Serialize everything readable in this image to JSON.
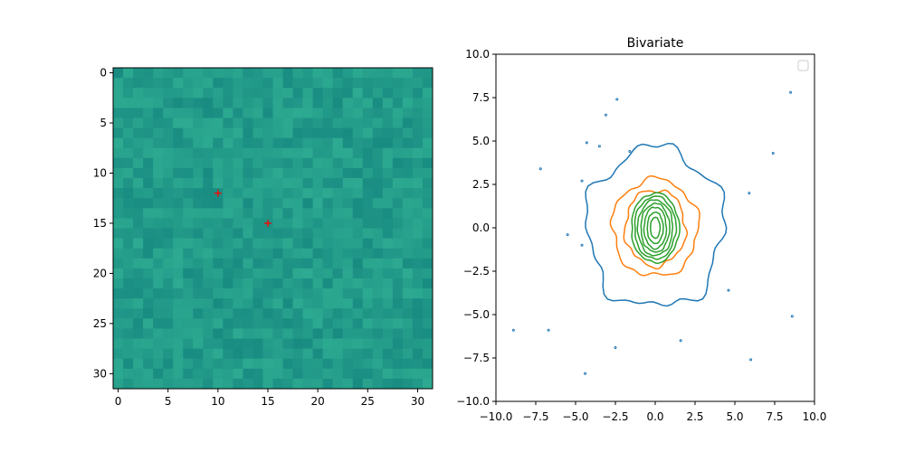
{
  "chart_data": [
    {
      "type": "heatmap",
      "title": "",
      "xlabel": "",
      "ylabel": "",
      "grid_size": [
        32,
        32
      ],
      "xlim": [
        -0.5,
        31.5
      ],
      "ylim": [
        31.5,
        -0.5
      ],
      "xticks": [
        0,
        5,
        10,
        15,
        20,
        25,
        30
      ],
      "yticks": [
        0,
        5,
        10,
        15,
        20,
        25,
        30
      ],
      "colormap": "viridis",
      "markers": [
        {
          "x": 10,
          "y": 12,
          "symbol": "+",
          "color": "#ff0000"
        },
        {
          "x": 15,
          "y": 15,
          "symbol": "+",
          "color": "#ff0000"
        }
      ]
    },
    {
      "type": "contour",
      "title": "Bivariate",
      "xlabel": "",
      "ylabel": "",
      "xlim": [
        -10,
        10
      ],
      "ylim": [
        -10,
        10
      ],
      "xticks": [
        -10.0,
        -7.5,
        -5.0,
        -2.5,
        0.0,
        2.5,
        5.0,
        7.5,
        10.0
      ],
      "yticks": [
        -10.0,
        -7.5,
        -5.0,
        -2.5,
        0.0,
        2.5,
        5.0,
        7.5,
        10.0
      ],
      "legend": "top-right (empty)",
      "series": [
        {
          "color": "#1f77b4",
          "levels": [
            {
              "rx": 4.3,
              "ry": 4.6
            }
          ]
        },
        {
          "color": "#ff7f0e",
          "levels": [
            {
              "rx": 2.7,
              "ry": 2.8
            },
            {
              "rx": 1.9,
              "ry": 2.2
            }
          ]
        },
        {
          "color": "#2ca02c",
          "levels": [
            {
              "rx": 1.5,
              "ry": 2.0
            },
            {
              "rx": 1.3,
              "ry": 1.8
            },
            {
              "rx": 1.1,
              "ry": 1.6
            },
            {
              "rx": 0.9,
              "ry": 1.4
            },
            {
              "rx": 0.7,
              "ry": 1.2
            },
            {
              "rx": 0.5,
              "ry": 0.9
            },
            {
              "rx": 0.3,
              "ry": 0.6
            }
          ]
        }
      ],
      "specks": [
        [
          -2.4,
          7.4
        ],
        [
          -3.1,
          6.5
        ],
        [
          -4.3,
          4.9
        ],
        [
          -1.6,
          4.4
        ],
        [
          -3.5,
          4.7
        ],
        [
          -7.2,
          3.4
        ],
        [
          -4.6,
          2.7
        ],
        [
          8.5,
          7.8
        ],
        [
          7.4,
          4.3
        ],
        [
          5.9,
          2.0
        ],
        [
          -5.5,
          -0.4
        ],
        [
          -4.6,
          -1.0
        ],
        [
          8.6,
          -5.1
        ],
        [
          -8.9,
          -5.9
        ],
        [
          -6.7,
          -5.9
        ],
        [
          -2.5,
          -6.9
        ],
        [
          6.0,
          -7.6
        ],
        [
          -4.4,
          -8.4
        ],
        [
          4.6,
          -3.6
        ],
        [
          1.6,
          -6.5
        ]
      ]
    }
  ]
}
